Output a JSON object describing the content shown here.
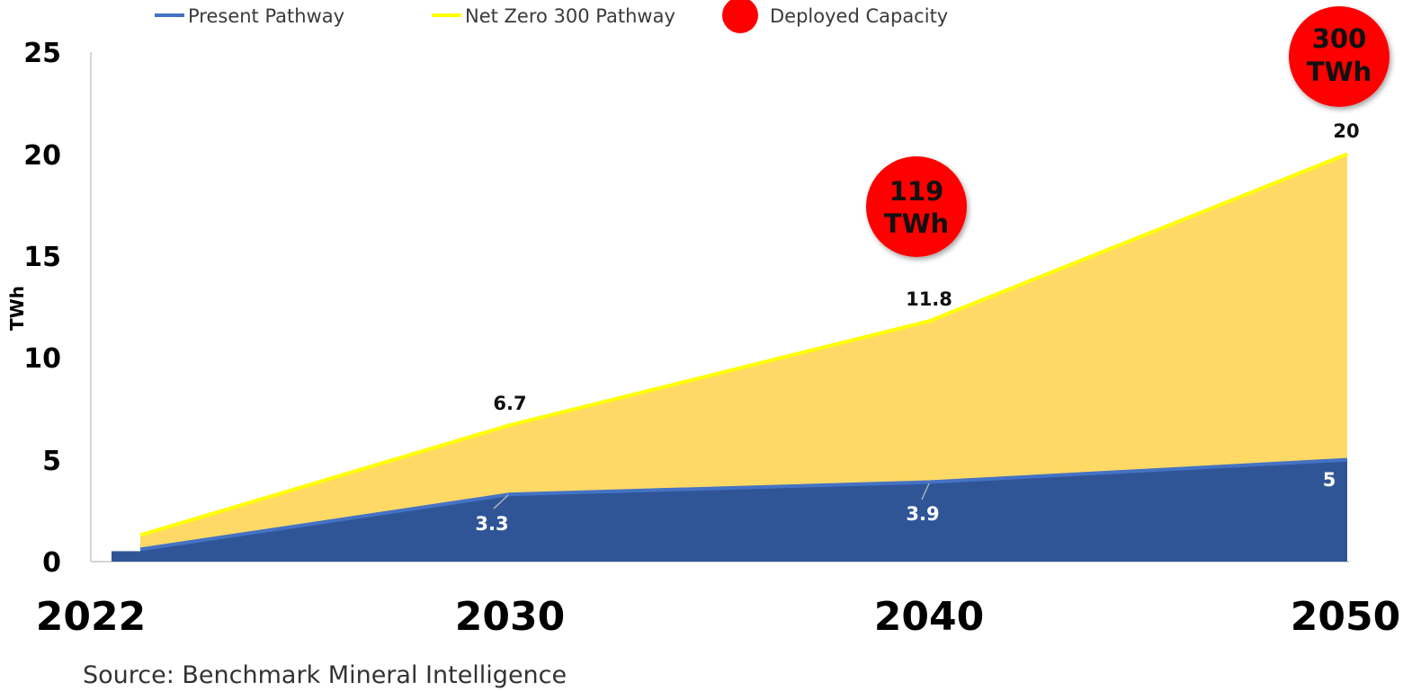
{
  "chart_data": {
    "type": "area",
    "x": [
      "2022",
      "2030",
      "2040",
      "2050"
    ],
    "ylabel": "TWh",
    "ylim": [
      0,
      25
    ],
    "yticks": [
      "0",
      "5",
      "10",
      "15",
      "20",
      "25"
    ],
    "series": [
      {
        "name": "Present Pathway",
        "values": [
          0.6,
          3.3,
          3.9,
          5
        ],
        "labels": [
          "",
          "3.3",
          "3.9",
          "5"
        ],
        "line_color": "#4472C4",
        "fill_color": "#2F5597"
      },
      {
        "name": "Net Zero 300 Pathway",
        "values": [
          1.3,
          6.7,
          11.8,
          20
        ],
        "labels": [
          "",
          "6.7",
          "11.8",
          "20"
        ],
        "line_color": "#FFFF00",
        "fill_color": "#FFD966"
      }
    ],
    "legend": {
      "placement": "top",
      "entries": [
        {
          "label": "Present Pathway",
          "color": "#4472C4",
          "marker": "line"
        },
        {
          "label": "Net Zero 300 Pathway",
          "color": "#FFFF00",
          "marker": "line"
        },
        {
          "label": "Deployed Capacity",
          "color": "#FF0000",
          "marker": "circle"
        }
      ]
    },
    "annotations": [
      {
        "x": "2040",
        "line1": "119",
        "line2": "TWh",
        "color": "#FF0000"
      },
      {
        "x": "2050",
        "line1": "300",
        "line2": "TWh",
        "color": "#FF0000"
      }
    ],
    "grid": false
  },
  "source_text": "Source: Benchmark Mineral Intelligence"
}
